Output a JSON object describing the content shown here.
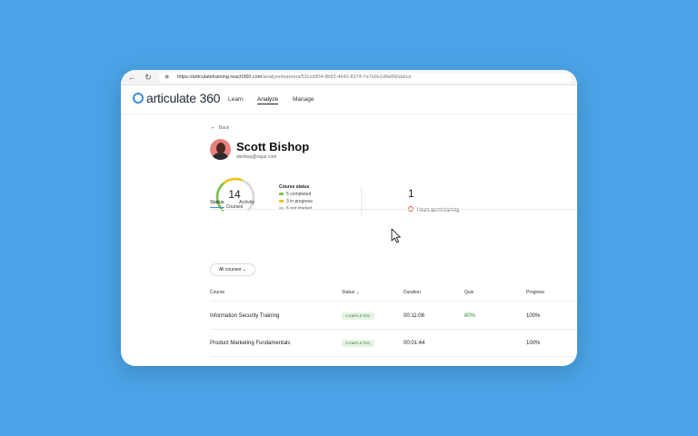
{
  "browser": {
    "url_host": "https://articulatetraining.reach360.com",
    "url_path": "/analyze/learners/52ccd904-8b53-4642-8374-7e7e9e1d9e89/status"
  },
  "app": {
    "logo_text": "articulate 360",
    "nav": [
      {
        "label": "Learn"
      },
      {
        "label": "Analyze"
      },
      {
        "label": "Manage"
      }
    ],
    "active_nav": "Analyze"
  },
  "learner": {
    "back_label": "Back",
    "name": "Scott Bishop",
    "email": "sbishop@oque.com"
  },
  "summary": {
    "courses_count": "14",
    "courses_label": "Courses",
    "status_title": "Course status",
    "status_items": [
      {
        "label": "5 completed",
        "color": "#7cc04a"
      },
      {
        "label": "3 in progress",
        "color": "#f2c318"
      },
      {
        "label": "6 not started",
        "color": "#bfc2c7"
      }
    ],
    "hours_value": "1",
    "hours_label": "Hours spent learning",
    "ring": {
      "completed": 5,
      "in_progress": 3,
      "not_started": 6
    }
  },
  "tabs": [
    {
      "label": "Status"
    },
    {
      "label": "Activity"
    }
  ],
  "filter": {
    "label": "All courses"
  },
  "table": {
    "headers": {
      "course": "Course",
      "status": "Status",
      "duration": "Duration",
      "quiz": "Quiz",
      "progress": "Progress"
    },
    "rows": [
      {
        "course": "Information Security Training",
        "status": "COMPLETED",
        "duration": "00:11:06",
        "quiz": "80%",
        "progress": "100%"
      },
      {
        "course": "Product Marketing Fundamentals",
        "status": "COMPLETED",
        "duration": "00:01:44",
        "quiz": "",
        "progress": "100%"
      }
    ]
  },
  "colors": {
    "accent": "#3a8fd9",
    "background": "#4aa3e6",
    "success": "#2e8a3e"
  }
}
